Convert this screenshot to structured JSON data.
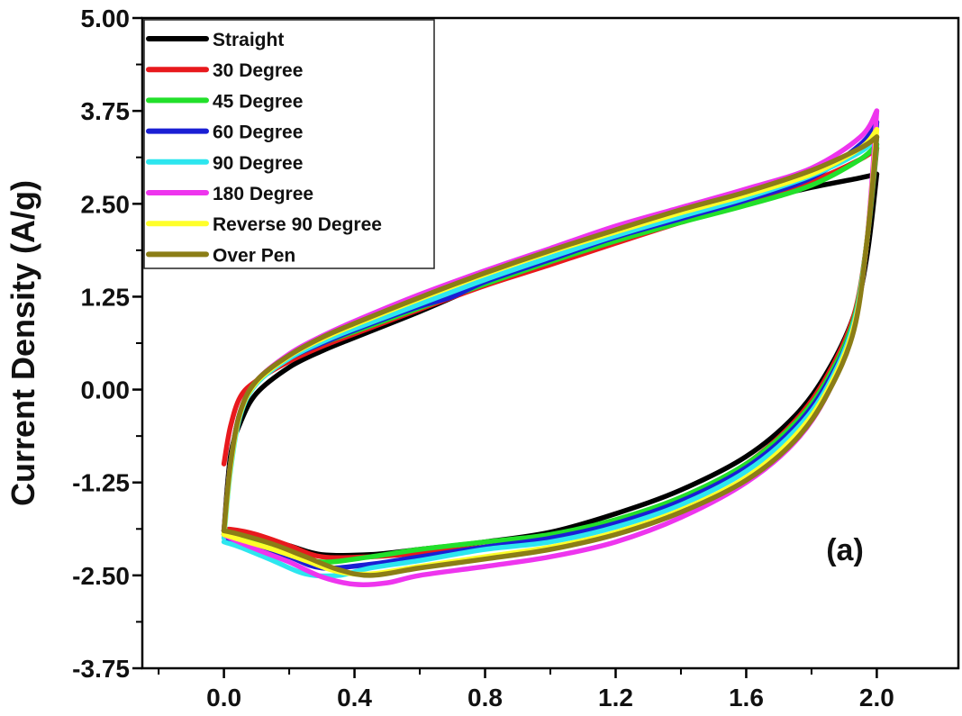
{
  "chart_data": {
    "type": "line",
    "title": "",
    "xlabel": "",
    "ylabel": "Current Density (A/g)",
    "xlim": [
      -0.25,
      2.25
    ],
    "ylim": [
      -3.75,
      5.0
    ],
    "x_ticks": [
      "0.0",
      "0.4",
      "0.8",
      "1.2",
      "1.6",
      "2.0"
    ],
    "x_tick_values": [
      0.0,
      0.4,
      0.8,
      1.2,
      1.6,
      2.0
    ],
    "y_ticks": [
      "5.00",
      "3.75",
      "2.50",
      "1.25",
      "0.00",
      "-1.25",
      "-2.50",
      "-3.75"
    ],
    "y_tick_values": [
      5.0,
      3.75,
      2.5,
      1.25,
      0.0,
      -1.25,
      -2.5,
      -3.75
    ],
    "annotation": "(a)",
    "legend_position": "top-left",
    "grid": false,
    "series": [
      {
        "name": "Straight",
        "color": "#000000",
        "upper": [
          [
            0.0,
            -1.9
          ],
          [
            0.02,
            -0.9
          ],
          [
            0.05,
            -0.45
          ],
          [
            0.1,
            -0.05
          ],
          [
            0.2,
            0.3
          ],
          [
            0.3,
            0.52
          ],
          [
            0.4,
            0.7
          ],
          [
            0.6,
            1.05
          ],
          [
            0.8,
            1.42
          ],
          [
            1.0,
            1.72
          ],
          [
            1.2,
            2.02
          ],
          [
            1.4,
            2.3
          ],
          [
            1.6,
            2.52
          ],
          [
            1.8,
            2.72
          ],
          [
            1.95,
            2.85
          ],
          [
            2.0,
            2.9
          ]
        ],
        "lower": [
          [
            2.0,
            2.9
          ],
          [
            1.97,
            1.8
          ],
          [
            1.93,
            1.0
          ],
          [
            1.85,
            0.25
          ],
          [
            1.75,
            -0.35
          ],
          [
            1.6,
            -0.9
          ],
          [
            1.4,
            -1.35
          ],
          [
            1.2,
            -1.67
          ],
          [
            1.0,
            -1.92
          ],
          [
            0.8,
            -2.05
          ],
          [
            0.6,
            -2.15
          ],
          [
            0.45,
            -2.22
          ],
          [
            0.3,
            -2.22
          ],
          [
            0.2,
            -2.1
          ],
          [
            0.1,
            -1.98
          ],
          [
            0.02,
            -1.9
          ],
          [
            0.0,
            -1.9
          ]
        ]
      },
      {
        "name": "30 Degree",
        "color": "#e8191d",
        "upper": [
          [
            0.0,
            -1.0
          ],
          [
            0.02,
            -0.5
          ],
          [
            0.05,
            -0.1
          ],
          [
            0.1,
            0.12
          ],
          [
            0.2,
            0.38
          ],
          [
            0.3,
            0.58
          ],
          [
            0.4,
            0.75
          ],
          [
            0.6,
            1.08
          ],
          [
            0.8,
            1.4
          ],
          [
            1.0,
            1.68
          ],
          [
            1.2,
            1.97
          ],
          [
            1.4,
            2.25
          ],
          [
            1.6,
            2.5
          ],
          [
            1.8,
            2.8
          ],
          [
            1.95,
            3.1
          ],
          [
            2.0,
            3.25
          ]
        ],
        "lower": [
          [
            2.0,
            3.25
          ],
          [
            1.97,
            2.0
          ],
          [
            1.93,
            1.0
          ],
          [
            1.85,
            0.2
          ],
          [
            1.75,
            -0.42
          ],
          [
            1.6,
            -1.0
          ],
          [
            1.4,
            -1.48
          ],
          [
            1.2,
            -1.8
          ],
          [
            1.0,
            -2.02
          ],
          [
            0.8,
            -2.12
          ],
          [
            0.6,
            -2.2
          ],
          [
            0.45,
            -2.25
          ],
          [
            0.3,
            -2.25
          ],
          [
            0.2,
            -2.1
          ],
          [
            0.1,
            -1.95
          ],
          [
            0.02,
            -1.88
          ],
          [
            0.0,
            -1.9
          ]
        ]
      },
      {
        "name": "45 Degree",
        "color": "#22e02a",
        "upper": [
          [
            0.0,
            -1.95
          ],
          [
            0.02,
            -1.0
          ],
          [
            0.05,
            -0.3
          ],
          [
            0.1,
            0.1
          ],
          [
            0.2,
            0.42
          ],
          [
            0.3,
            0.62
          ],
          [
            0.4,
            0.78
          ],
          [
            0.6,
            1.1
          ],
          [
            0.8,
            1.42
          ],
          [
            1.0,
            1.72
          ],
          [
            1.2,
            2.0
          ],
          [
            1.4,
            2.25
          ],
          [
            1.6,
            2.48
          ],
          [
            1.8,
            2.75
          ],
          [
            1.95,
            3.1
          ],
          [
            2.0,
            3.3
          ]
        ],
        "lower": [
          [
            2.0,
            3.3
          ],
          [
            1.97,
            2.0
          ],
          [
            1.93,
            0.95
          ],
          [
            1.85,
            0.15
          ],
          [
            1.75,
            -0.45
          ],
          [
            1.6,
            -1.0
          ],
          [
            1.4,
            -1.45
          ],
          [
            1.2,
            -1.75
          ],
          [
            1.0,
            -1.95
          ],
          [
            0.8,
            -2.05
          ],
          [
            0.6,
            -2.15
          ],
          [
            0.45,
            -2.25
          ],
          [
            0.3,
            -2.32
          ],
          [
            0.2,
            -2.2
          ],
          [
            0.1,
            -2.05
          ],
          [
            0.02,
            -2.0
          ],
          [
            0.0,
            -1.95
          ]
        ]
      },
      {
        "name": "60 Degree",
        "color": "#1a1fd4",
        "upper": [
          [
            0.0,
            -1.95
          ],
          [
            0.02,
            -1.0
          ],
          [
            0.05,
            -0.3
          ],
          [
            0.1,
            0.1
          ],
          [
            0.2,
            0.42
          ],
          [
            0.3,
            0.62
          ],
          [
            0.4,
            0.8
          ],
          [
            0.6,
            1.12
          ],
          [
            0.7,
            1.25
          ],
          [
            0.8,
            1.45
          ],
          [
            1.0,
            1.75
          ],
          [
            1.2,
            2.05
          ],
          [
            1.4,
            2.3
          ],
          [
            1.6,
            2.55
          ],
          [
            1.8,
            2.85
          ],
          [
            1.95,
            3.3
          ],
          [
            2.0,
            3.6
          ]
        ],
        "lower": [
          [
            2.0,
            3.6
          ],
          [
            1.97,
            2.0
          ],
          [
            1.93,
            0.9
          ],
          [
            1.85,
            0.1
          ],
          [
            1.75,
            -0.5
          ],
          [
            1.6,
            -1.05
          ],
          [
            1.4,
            -1.5
          ],
          [
            1.2,
            -1.8
          ],
          [
            1.0,
            -2.0
          ],
          [
            0.8,
            -2.12
          ],
          [
            0.6,
            -2.25
          ],
          [
            0.45,
            -2.35
          ],
          [
            0.3,
            -2.4
          ],
          [
            0.2,
            -2.25
          ],
          [
            0.1,
            -2.1
          ],
          [
            0.02,
            -2.02
          ],
          [
            0.0,
            -1.95
          ]
        ]
      },
      {
        "name": "90 Degree",
        "color": "#2de6ef",
        "upper": [
          [
            0.0,
            -2.0
          ],
          [
            0.02,
            -1.1
          ],
          [
            0.05,
            -0.35
          ],
          [
            0.1,
            0.08
          ],
          [
            0.2,
            0.42
          ],
          [
            0.3,
            0.64
          ],
          [
            0.4,
            0.82
          ],
          [
            0.6,
            1.15
          ],
          [
            0.8,
            1.48
          ],
          [
            1.0,
            1.78
          ],
          [
            1.2,
            2.07
          ],
          [
            1.4,
            2.33
          ],
          [
            1.6,
            2.58
          ],
          [
            1.8,
            2.88
          ],
          [
            1.95,
            3.2
          ],
          [
            2.0,
            3.4
          ]
        ],
        "lower": [
          [
            2.0,
            3.4
          ],
          [
            1.97,
            2.0
          ],
          [
            1.93,
            0.9
          ],
          [
            1.85,
            0.05
          ],
          [
            1.75,
            -0.55
          ],
          [
            1.6,
            -1.1
          ],
          [
            1.4,
            -1.55
          ],
          [
            1.2,
            -1.85
          ],
          [
            1.0,
            -2.05
          ],
          [
            0.8,
            -2.15
          ],
          [
            0.6,
            -2.3
          ],
          [
            0.45,
            -2.4
          ],
          [
            0.35,
            -2.5
          ],
          [
            0.25,
            -2.48
          ],
          [
            0.15,
            -2.3
          ],
          [
            0.05,
            -2.12
          ],
          [
            0.0,
            -2.05
          ]
        ]
      },
      {
        "name": "180 Degree",
        "color": "#ee35ee",
        "upper": [
          [
            0.0,
            -1.9
          ],
          [
            0.02,
            -1.0
          ],
          [
            0.05,
            -0.3
          ],
          [
            0.1,
            0.12
          ],
          [
            0.2,
            0.48
          ],
          [
            0.3,
            0.72
          ],
          [
            0.4,
            0.92
          ],
          [
            0.6,
            1.28
          ],
          [
            0.8,
            1.6
          ],
          [
            1.0,
            1.9
          ],
          [
            1.2,
            2.2
          ],
          [
            1.4,
            2.45
          ],
          [
            1.6,
            2.7
          ],
          [
            1.8,
            2.98
          ],
          [
            1.95,
            3.4
          ],
          [
            2.0,
            3.75
          ]
        ],
        "lower": [
          [
            2.0,
            3.75
          ],
          [
            1.97,
            2.0
          ],
          [
            1.93,
            0.85
          ],
          [
            1.85,
            -0.05
          ],
          [
            1.75,
            -0.7
          ],
          [
            1.6,
            -1.25
          ],
          [
            1.4,
            -1.72
          ],
          [
            1.2,
            -2.05
          ],
          [
            1.0,
            -2.25
          ],
          [
            0.8,
            -2.38
          ],
          [
            0.6,
            -2.5
          ],
          [
            0.5,
            -2.6
          ],
          [
            0.4,
            -2.62
          ],
          [
            0.3,
            -2.52
          ],
          [
            0.2,
            -2.32
          ],
          [
            0.1,
            -2.15
          ],
          [
            0.02,
            -2.0
          ],
          [
            0.0,
            -1.95
          ]
        ]
      },
      {
        "name": "Reverse 90 Degree",
        "color": "#ffff2a",
        "upper": [
          [
            0.0,
            -1.95
          ],
          [
            0.02,
            -1.05
          ],
          [
            0.05,
            -0.32
          ],
          [
            0.1,
            0.1
          ],
          [
            0.2,
            0.45
          ],
          [
            0.3,
            0.68
          ],
          [
            0.4,
            0.87
          ],
          [
            0.6,
            1.22
          ],
          [
            0.8,
            1.55
          ],
          [
            1.0,
            1.85
          ],
          [
            1.2,
            2.12
          ],
          [
            1.4,
            2.38
          ],
          [
            1.6,
            2.62
          ],
          [
            1.8,
            2.9
          ],
          [
            1.95,
            3.25
          ],
          [
            2.0,
            3.5
          ]
        ],
        "lower": [
          [
            2.0,
            3.5
          ],
          [
            1.97,
            2.0
          ],
          [
            1.93,
            0.85
          ],
          [
            1.85,
            0.0
          ],
          [
            1.75,
            -0.62
          ],
          [
            1.6,
            -1.18
          ],
          [
            1.4,
            -1.62
          ],
          [
            1.2,
            -1.92
          ],
          [
            1.0,
            -2.12
          ],
          [
            0.8,
            -2.25
          ],
          [
            0.6,
            -2.38
          ],
          [
            0.45,
            -2.48
          ],
          [
            0.35,
            -2.45
          ],
          [
            0.25,
            -2.3
          ],
          [
            0.15,
            -2.15
          ],
          [
            0.05,
            -2.02
          ],
          [
            0.0,
            -1.95
          ]
        ]
      },
      {
        "name": "Over Pen",
        "color": "#8b7d16",
        "upper": [
          [
            0.0,
            -1.9
          ],
          [
            0.02,
            -1.0
          ],
          [
            0.05,
            -0.3
          ],
          [
            0.1,
            0.12
          ],
          [
            0.2,
            0.46
          ],
          [
            0.3,
            0.7
          ],
          [
            0.4,
            0.89
          ],
          [
            0.6,
            1.24
          ],
          [
            0.8,
            1.57
          ],
          [
            1.0,
            1.87
          ],
          [
            1.2,
            2.15
          ],
          [
            1.4,
            2.42
          ],
          [
            1.6,
            2.66
          ],
          [
            1.8,
            2.95
          ],
          [
            1.95,
            3.25
          ],
          [
            2.0,
            3.4
          ]
        ],
        "lower": [
          [
            2.0,
            3.4
          ],
          [
            1.97,
            2.0
          ],
          [
            1.93,
            0.8
          ],
          [
            1.85,
            -0.05
          ],
          [
            1.75,
            -0.68
          ],
          [
            1.6,
            -1.22
          ],
          [
            1.4,
            -1.65
          ],
          [
            1.2,
            -1.95
          ],
          [
            1.0,
            -2.15
          ],
          [
            0.8,
            -2.28
          ],
          [
            0.6,
            -2.4
          ],
          [
            0.45,
            -2.5
          ],
          [
            0.35,
            -2.42
          ],
          [
            0.25,
            -2.25
          ],
          [
            0.15,
            -2.08
          ],
          [
            0.05,
            -1.95
          ],
          [
            0.0,
            -1.9
          ]
        ]
      }
    ]
  }
}
